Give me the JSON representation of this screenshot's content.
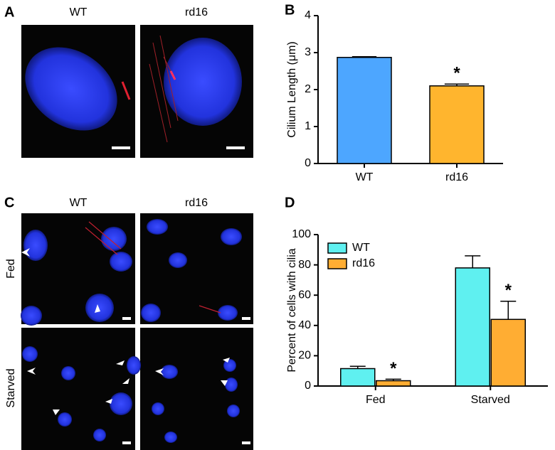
{
  "panel_labels": [
    "A",
    "B",
    "C",
    "D"
  ],
  "image_panels": [
    {
      "columns": [
        "WT",
        "rd16"
      ]
    },
    {
      "columns": [
        "WT",
        "rd16"
      ],
      "rows": [
        "Fed",
        "Starved"
      ]
    }
  ],
  "chart_data": [
    {
      "type": "bar",
      "y_label": "Cilium Length (μm)",
      "categories": [
        "WT",
        "rd16"
      ],
      "series": [
        {
          "values": [
            2.87,
            2.1
          ],
          "errors": [
            0.02,
            0.05
          ],
          "colors": [
            "#4da6ff",
            "#ffb52e"
          ]
        }
      ],
      "ylim": [
        0,
        4
      ],
      "yticks": [
        0,
        1,
        2,
        3,
        4
      ],
      "annotations": [
        {
          "text": "*",
          "category": "rd16"
        }
      ]
    },
    {
      "type": "bar",
      "y_label": "Percent of cells with cilia",
      "categories": [
        "Fed",
        "Starved"
      ],
      "series": [
        {
          "name": "WT",
          "color": "#5ff0f0",
          "values": [
            11.5,
            78
          ],
          "errors": [
            1.5,
            8
          ]
        },
        {
          "name": "rd16",
          "color": "#ffad33",
          "values": [
            3.5,
            44
          ],
          "errors": [
            1,
            12
          ]
        }
      ],
      "ylim": [
        0,
        100
      ],
      "yticks": [
        0,
        20,
        40,
        60,
        80,
        100
      ],
      "legend": "upper left",
      "annotations": [
        {
          "text": "*",
          "category": "Fed",
          "series": "rd16"
        },
        {
          "text": "*",
          "category": "Starved",
          "series": "rd16"
        }
      ]
    }
  ]
}
